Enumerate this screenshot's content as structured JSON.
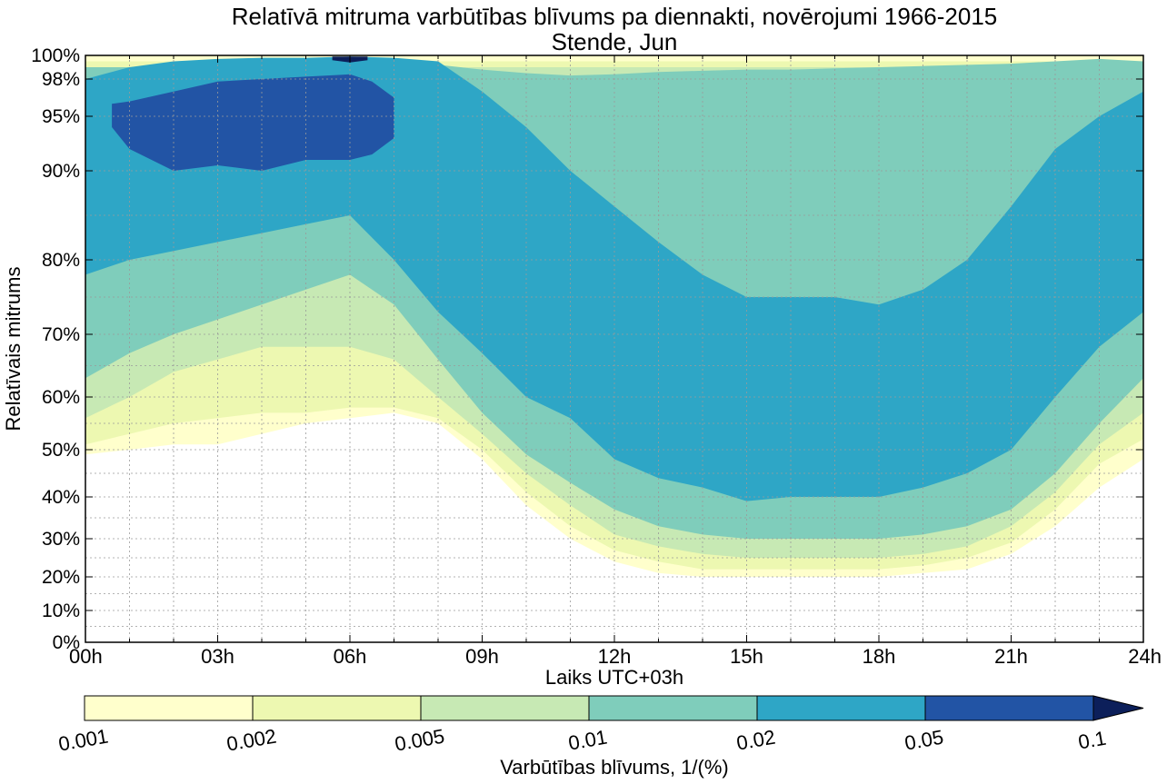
{
  "chart_data": {
    "type": "heatmap",
    "title": "Relatīvā mitruma varbūtības blīvums pa diennakti, novērojumi 1966-2015",
    "subtitle": "Stende, Jun",
    "xlabel": "Laiks UTC+03h",
    "ylabel": "Relatīvais mitrums",
    "x_ticks": [
      "00h",
      "03h",
      "06h",
      "09h",
      "12h",
      "15h",
      "18h",
      "21h",
      "24h"
    ],
    "x_tick_values": [
      0,
      3,
      6,
      9,
      12,
      15,
      18,
      21,
      24
    ],
    "xlim": [
      0,
      24
    ],
    "y_ticks": [
      "0%",
      "10%",
      "20%",
      "30%",
      "40%",
      "50%",
      "60%",
      "70%",
      "80%",
      "90%",
      "95%",
      "98%",
      "100%"
    ],
    "y_tick_values": [
      0,
      10,
      20,
      30,
      40,
      50,
      60,
      70,
      80,
      90,
      95,
      98,
      100
    ],
    "ylim": [
      0,
      100
    ],
    "grid": true,
    "colorbar": {
      "label": "Varbūtības blīvums, 1/(%)",
      "levels": [
        0.001,
        0.002,
        0.005,
        0.01,
        0.02,
        0.05,
        0.1
      ],
      "tick_labels": [
        "0.001",
        "0.002",
        "0.005",
        "0.01",
        "0.02",
        "0.05",
        "0.1"
      ],
      "colors": [
        "#ffffcc",
        "#edf8b1",
        "#c7e9b4",
        "#7fcdbb",
        "#2ea6c6",
        "#2254a5",
        "#0c1f5a"
      ],
      "extend": "max"
    },
    "contours": [
      {
        "level": 0.001,
        "color": "#ffffcc",
        "x": [
          0,
          1,
          2,
          3,
          4,
          5,
          6,
          7,
          8,
          9,
          10,
          11,
          12,
          13,
          14,
          15,
          16,
          17,
          18,
          19,
          20,
          21,
          22,
          23,
          24
        ],
        "y_low": [
          49,
          50,
          51,
          51,
          53,
          55,
          56,
          57,
          55,
          48,
          38,
          30,
          24,
          21,
          20,
          20,
          20,
          20,
          20,
          21,
          22,
          26,
          33,
          42,
          48
        ],
        "y_high": [
          100,
          100,
          100,
          100,
          100,
          100,
          100,
          100,
          100,
          100,
          100,
          100,
          100,
          100,
          100,
          100,
          100,
          100,
          100,
          100,
          100,
          100,
          100,
          100,
          100
        ]
      },
      {
        "level": 0.002,
        "color": "#edf8b1",
        "x": [
          0,
          1,
          2,
          3,
          4,
          5,
          6,
          7,
          8,
          9,
          10,
          11,
          12,
          13,
          14,
          15,
          16,
          17,
          18,
          19,
          20,
          21,
          22,
          23,
          24
        ],
        "y_low": [
          51,
          53,
          55,
          56,
          57,
          57,
          58,
          58,
          56,
          50,
          41,
          33,
          27,
          24,
          22,
          22,
          22,
          22,
          22,
          23,
          25,
          29,
          37,
          47,
          52
        ],
        "y_high": [
          99.5,
          99.5,
          99.5,
          99.5,
          99.5,
          99.5,
          99.5,
          99.5,
          99.5,
          99.5,
          99.5,
          99.5,
          99.5,
          99.5,
          99.5,
          99.5,
          99.5,
          99.5,
          99.5,
          99.5,
          99.5,
          99.5,
          99.5,
          99.5,
          99.5
        ]
      },
      {
        "level": 0.005,
        "color": "#c7e9b4",
        "x": [
          0,
          1,
          2,
          3,
          4,
          5,
          6,
          7,
          8,
          9,
          10,
          11,
          12,
          13,
          14,
          15,
          16,
          17,
          18,
          19,
          20,
          21,
          22,
          23,
          24
        ],
        "y_low": [
          56,
          60,
          64,
          66,
          68,
          68,
          68,
          66,
          60,
          53,
          45,
          38,
          31,
          28,
          26,
          25,
          25,
          25,
          25,
          26,
          28,
          33,
          41,
          51,
          57
        ],
        "y_high": [
          99,
          99,
          99,
          99,
          99,
          99,
          99,
          99,
          99,
          99,
          99,
          99,
          99,
          99,
          99,
          99,
          99,
          99,
          99,
          99,
          99,
          99,
          99,
          99,
          99
        ]
      },
      {
        "level": 0.01,
        "color": "#7fcdbb",
        "x": [
          0,
          1,
          2,
          3,
          4,
          5,
          6,
          7,
          8,
          9,
          10,
          11,
          12,
          13,
          14,
          15,
          16,
          17,
          18,
          19,
          20,
          21,
          22,
          23,
          24
        ],
        "y_low": [
          63,
          67,
          70,
          72,
          74,
          76,
          78,
          74,
          66,
          57,
          49,
          43,
          37,
          33,
          31,
          30,
          30,
          30,
          30,
          31,
          33,
          37,
          45,
          55,
          63
        ],
        "y_high": [
          99,
          99,
          99.2,
          99.4,
          99.6,
          99.7,
          99.7,
          99.6,
          99.2,
          98.8,
          98.5,
          98.3,
          98.4,
          98.6,
          98.7,
          98.8,
          98.8,
          98.9,
          99,
          99.1,
          99.2,
          99.3,
          99.5,
          99.7,
          99.5
        ]
      },
      {
        "level": 0.02,
        "color": "#2ea6c6",
        "x": [
          0,
          1,
          2,
          3,
          4,
          5,
          6,
          7,
          8,
          9,
          10,
          11,
          12,
          13,
          14,
          15,
          16,
          17,
          18,
          19,
          20,
          21,
          22,
          23,
          24
        ],
        "y_low": [
          78,
          80,
          81,
          82,
          83,
          84,
          85,
          80,
          73,
          67,
          60,
          56,
          48,
          44,
          42,
          39,
          40,
          40,
          40,
          42,
          45,
          50,
          60,
          68,
          73
        ],
        "y_high": [
          98,
          99,
          99.5,
          99.7,
          99.8,
          99.8,
          99.9,
          99.8,
          99.5,
          97,
          94,
          90,
          86,
          82,
          78,
          75,
          75,
          75,
          74,
          76,
          80,
          86,
          92,
          95,
          97
        ]
      },
      {
        "level": 0.05,
        "color": "#2254a5",
        "x": [
          0.6,
          1,
          2,
          3,
          4,
          5,
          6,
          6.5,
          7
        ],
        "y_low": [
          94,
          92,
          90,
          90.5,
          90,
          91,
          91,
          91.5,
          93
        ],
        "y_high": [
          96,
          96.2,
          97,
          97.8,
          98,
          98.2,
          98.4,
          97.8,
          96.5
        ]
      },
      {
        "level": 0.1,
        "color": "#0c1f5a",
        "x": [
          5.6,
          6,
          6.4
        ],
        "y_low": [
          99.6,
          99.4,
          99.6
        ],
        "y_high": [
          99.9,
          99.9,
          99.9
        ]
      }
    ]
  }
}
